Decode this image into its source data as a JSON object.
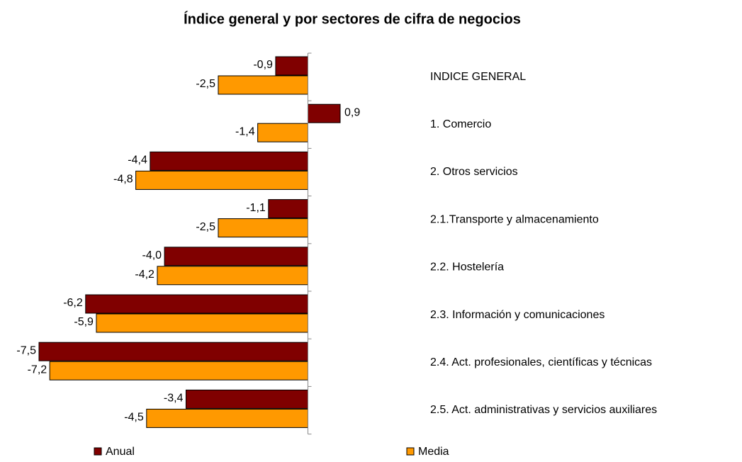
{
  "chart_data": {
    "type": "barh",
    "title": "Índice general y por sectores de cifra de negocios",
    "categories": [
      "INDICE GENERAL",
      "1. Comercio",
      "2. Otros servicios",
      "2.1.Transporte y almacenamiento",
      "2.2. Hostelería",
      "2.3. Información y comunicaciones",
      "2.4. Act. profesionales, científicas y técnicas",
      "2.5. Act. administrativas y servicios auxiliares"
    ],
    "series": [
      {
        "name": "Anual",
        "color": "#800000",
        "values": [
          -0.9,
          0.9,
          -4.4,
          -1.1,
          -4.0,
          -6.2,
          -7.5,
          -3.4
        ],
        "value_labels": [
          "-0,9",
          "0,9",
          "-4,4",
          "-1,1",
          "-4,0",
          "-6,2",
          "-7,5",
          "-3,4"
        ]
      },
      {
        "name": "Media",
        "color": "#ff9900",
        "values": [
          -2.5,
          -1.4,
          -4.8,
          -2.5,
          -4.2,
          -5.9,
          -7.2,
          -4.5
        ],
        "value_labels": [
          "-2,5",
          "-1,4",
          "-4,8",
          "-2,5",
          "-4,2",
          "-5,9",
          "-7,2",
          "-4,5"
        ]
      }
    ]
  }
}
